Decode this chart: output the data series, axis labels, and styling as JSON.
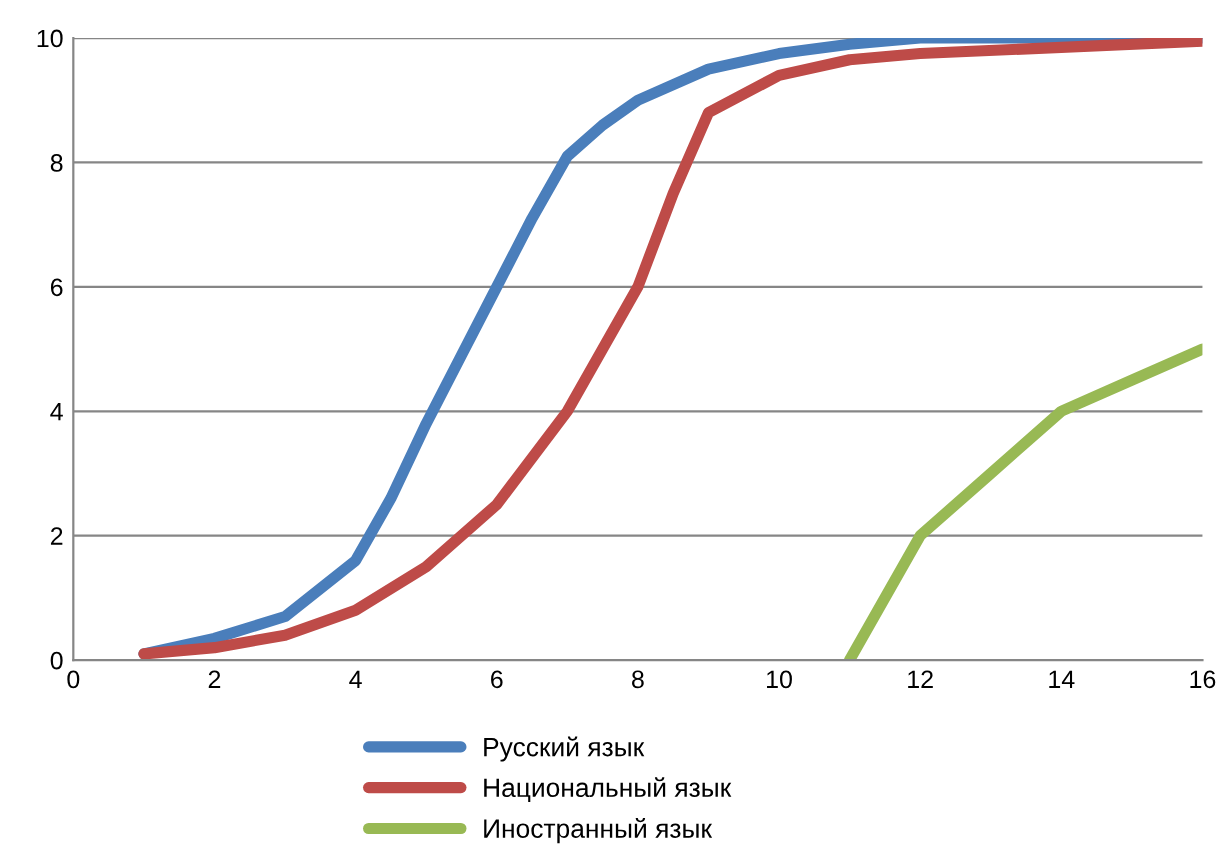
{
  "chart_data": {
    "type": "line",
    "series": [
      {
        "name": "Русский язык",
        "color": "#4a7ebb",
        "x": [
          1,
          2,
          3,
          4,
          4.5,
          5,
          5.5,
          6,
          6.5,
          7,
          7.5,
          8,
          9,
          10,
          11,
          12,
          14,
          16
        ],
        "values": [
          0.1,
          0.35,
          0.7,
          1.6,
          2.6,
          3.8,
          4.9,
          6.0,
          7.1,
          8.1,
          8.6,
          9.0,
          9.5,
          9.75,
          9.9,
          10,
          10,
          10
        ]
      },
      {
        "name": "Национальный язык",
        "color": "#be4b48",
        "x": [
          1,
          2,
          3,
          4,
          5,
          6,
          7,
          7.5,
          8,
          8.5,
          9,
          10,
          11,
          12,
          14,
          16
        ],
        "values": [
          0.1,
          0.2,
          0.4,
          0.8,
          1.5,
          2.5,
          4.0,
          5.0,
          6.0,
          7.5,
          8.8,
          9.4,
          9.65,
          9.75,
          9.85,
          9.95
        ]
      },
      {
        "name": "Иностранный язык",
        "color": "#98b954",
        "x": [
          11,
          12,
          13,
          14,
          15,
          16
        ],
        "values": [
          0,
          2,
          3,
          4,
          4.5,
          5
        ]
      }
    ],
    "xlim": [
      0,
      16
    ],
    "xticks": [
      0,
      2,
      4,
      6,
      8,
      10,
      12,
      14,
      16
    ],
    "ylim": [
      0,
      10
    ],
    "yticks": [
      0,
      2,
      4,
      6,
      8,
      10
    ],
    "grid": "y",
    "legend": "bottom",
    "marker": "none",
    "line_style": "solid"
  }
}
